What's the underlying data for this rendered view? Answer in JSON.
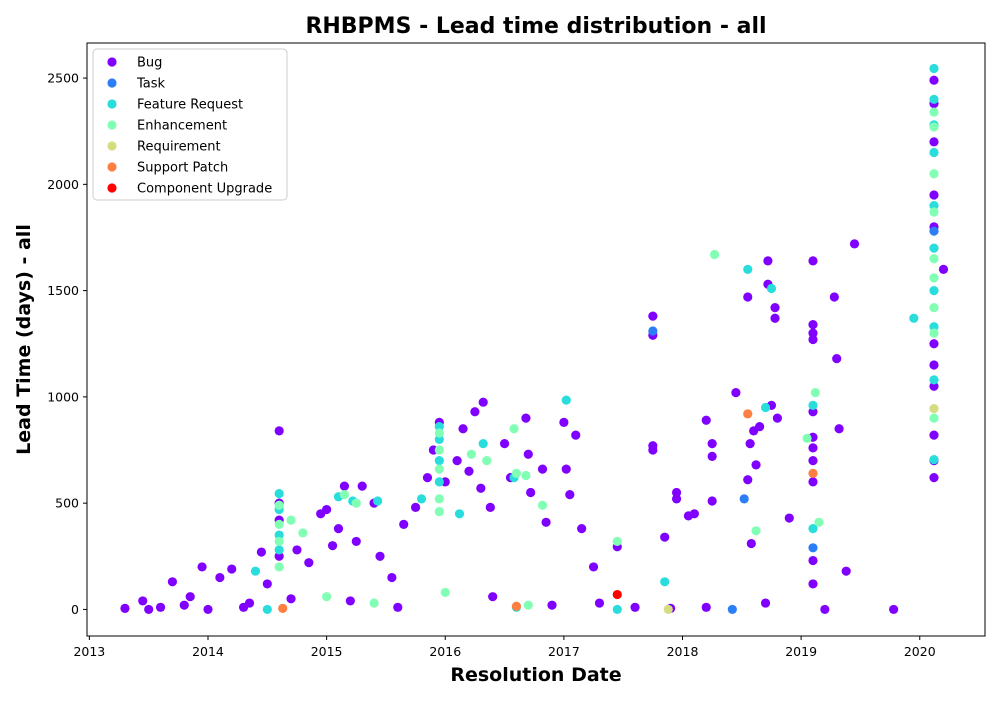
{
  "chart_data": {
    "type": "scatter",
    "title": "RHBPMS - Lead time distribution - all",
    "xlabel": "Resolution Date",
    "ylabel": "Lead Time (days) - all",
    "xlim": [
      2012.98,
      2020.55
    ],
    "ylim": [
      -125,
      2665
    ],
    "xticks": [
      2013,
      2014,
      2015,
      2016,
      2017,
      2018,
      2019,
      2020
    ],
    "xtick_labels": [
      "2013",
      "2014",
      "2015",
      "2016",
      "2017",
      "2018",
      "2019",
      "2020"
    ],
    "yticks": [
      0,
      500,
      1000,
      1500,
      2000,
      2500
    ],
    "ytick_labels": [
      "0",
      "500",
      "1000",
      "1500",
      "2000",
      "2500"
    ],
    "grid": false,
    "legend_position": "upper-left",
    "series": [
      {
        "name": "Bug",
        "color": "#8000ff",
        "points": [
          [
            2013.3,
            5
          ],
          [
            2013.45,
            40
          ],
          [
            2013.6,
            10
          ],
          [
            2013.7,
            130
          ],
          [
            2013.85,
            60
          ],
          [
            2013.95,
            200
          ],
          [
            2014.1,
            150
          ],
          [
            2014.2,
            190
          ],
          [
            2014.35,
            30
          ],
          [
            2014.45,
            270
          ],
          [
            2014.5,
            120
          ],
          [
            2014.6,
            840
          ],
          [
            2014.6,
            500
          ],
          [
            2014.6,
            420
          ],
          [
            2014.6,
            250
          ],
          [
            2014.75,
            280
          ],
          [
            2014.85,
            220
          ],
          [
            2014.95,
            450
          ],
          [
            2015.0,
            470
          ],
          [
            2015.05,
            300
          ],
          [
            2015.1,
            380
          ],
          [
            2015.15,
            580
          ],
          [
            2015.25,
            320
          ],
          [
            2015.3,
            580
          ],
          [
            2015.4,
            500
          ],
          [
            2015.45,
            250
          ],
          [
            2015.55,
            150
          ],
          [
            2015.65,
            400
          ],
          [
            2015.75,
            480
          ],
          [
            2015.85,
            620
          ],
          [
            2015.9,
            750
          ],
          [
            2015.95,
            880
          ],
          [
            2016.0,
            600
          ],
          [
            2016.1,
            700
          ],
          [
            2016.15,
            850
          ],
          [
            2016.2,
            650
          ],
          [
            2016.25,
            930
          ],
          [
            2016.3,
            570
          ],
          [
            2016.32,
            975
          ],
          [
            2016.38,
            480
          ],
          [
            2016.5,
            780
          ],
          [
            2016.55,
            620
          ],
          [
            2016.68,
            900
          ],
          [
            2016.7,
            730
          ],
          [
            2016.72,
            550
          ],
          [
            2016.82,
            660
          ],
          [
            2016.85,
            410
          ],
          [
            2017.0,
            880
          ],
          [
            2017.02,
            660
          ],
          [
            2017.05,
            540
          ],
          [
            2017.1,
            820
          ],
          [
            2017.15,
            380
          ],
          [
            2017.25,
            200
          ],
          [
            2017.45,
            295
          ],
          [
            2017.75,
            1380
          ],
          [
            2017.75,
            1290
          ],
          [
            2017.75,
            770
          ],
          [
            2017.75,
            750
          ],
          [
            2017.85,
            340
          ],
          [
            2017.95,
            550
          ],
          [
            2017.95,
            520
          ],
          [
            2018.05,
            440
          ],
          [
            2018.1,
            450
          ],
          [
            2018.2,
            890
          ],
          [
            2018.25,
            780
          ],
          [
            2018.25,
            720
          ],
          [
            2018.25,
            510
          ],
          [
            2018.45,
            1020
          ],
          [
            2018.55,
            1470
          ],
          [
            2018.6,
            840
          ],
          [
            2018.62,
            680
          ],
          [
            2018.65,
            860
          ],
          [
            2018.72,
            1640
          ],
          [
            2018.72,
            1530
          ],
          [
            2018.75,
            960
          ],
          [
            2018.78,
            1420
          ],
          [
            2018.78,
            1370
          ],
          [
            2018.8,
            900
          ],
          [
            2018.9,
            430
          ],
          [
            2018.55,
            610
          ],
          [
            2018.57,
            780
          ],
          [
            2018.58,
            310
          ],
          [
            2019.1,
            1640
          ],
          [
            2019.1,
            1340
          ],
          [
            2019.1,
            1300
          ],
          [
            2019.1,
            1270
          ],
          [
            2019.1,
            930
          ],
          [
            2019.1,
            810
          ],
          [
            2019.1,
            760
          ],
          [
            2019.1,
            700
          ],
          [
            2019.1,
            600
          ],
          [
            2019.1,
            230
          ],
          [
            2019.1,
            120
          ],
          [
            2019.28,
            1470
          ],
          [
            2019.3,
            1180
          ],
          [
            2019.32,
            850
          ],
          [
            2019.38,
            180
          ],
          [
            2019.45,
            1720
          ],
          [
            2019.78,
            0
          ],
          [
            2020.2,
            1600
          ],
          [
            2020.12,
            2490
          ],
          [
            2020.12,
            2380
          ],
          [
            2020.12,
            2200
          ],
          [
            2020.12,
            1950
          ],
          [
            2020.12,
            1800
          ],
          [
            2020.12,
            1250
          ],
          [
            2020.12,
            1150
          ],
          [
            2020.12,
            1050
          ],
          [
            2020.12,
            820
          ],
          [
            2020.12,
            700
          ],
          [
            2020.12,
            620
          ],
          [
            2013.5,
            0
          ],
          [
            2013.8,
            20
          ],
          [
            2014.0,
            0
          ],
          [
            2014.3,
            10
          ],
          [
            2014.7,
            50
          ],
          [
            2015.2,
            40
          ],
          [
            2015.6,
            10
          ],
          [
            2016.4,
            60
          ],
          [
            2016.9,
            20
          ],
          [
            2017.3,
            30
          ],
          [
            2017.6,
            10
          ],
          [
            2017.9,
            5
          ],
          [
            2018.2,
            10
          ],
          [
            2018.7,
            30
          ],
          [
            2019.2,
            0
          ]
        ]
      },
      {
        "name": "Task",
        "color": "#2c7ef7",
        "points": [
          [
            2017.75,
            1310
          ],
          [
            2018.42,
            0
          ],
          [
            2018.52,
            520
          ],
          [
            2019.1,
            290
          ],
          [
            2020.12,
            1780
          ]
        ]
      },
      {
        "name": "Feature Request",
        "color": "#2adddd",
        "points": [
          [
            2014.4,
            180
          ],
          [
            2014.6,
            545
          ],
          [
            2014.6,
            470
          ],
          [
            2014.6,
            350
          ],
          [
            2014.6,
            280
          ],
          [
            2015.1,
            530
          ],
          [
            2015.22,
            510
          ],
          [
            2015.43,
            510
          ],
          [
            2015.8,
            520
          ],
          [
            2015.95,
            860
          ],
          [
            2015.95,
            800
          ],
          [
            2015.95,
            700
          ],
          [
            2015.95,
            600
          ],
          [
            2016.12,
            450
          ],
          [
            2016.32,
            780
          ],
          [
            2016.58,
            620
          ],
          [
            2017.02,
            985
          ],
          [
            2017.85,
            130
          ],
          [
            2018.55,
            1600
          ],
          [
            2018.7,
            950
          ],
          [
            2018.75,
            1510
          ],
          [
            2019.1,
            960
          ],
          [
            2019.95,
            1370
          ],
          [
            2020.12,
            2545
          ],
          [
            2020.12,
            2400
          ],
          [
            2020.12,
            2280
          ],
          [
            2020.12,
            2150
          ],
          [
            2020.12,
            1900
          ],
          [
            2020.12,
            1700
          ],
          [
            2020.12,
            1500
          ],
          [
            2020.12,
            1330
          ],
          [
            2020.12,
            1080
          ],
          [
            2020.12,
            705
          ],
          [
            2019.1,
            380
          ],
          [
            2016.6,
            10
          ],
          [
            2014.5,
            0
          ],
          [
            2017.45,
            0
          ]
        ]
      },
      {
        "name": "Enhancement",
        "color": "#81ffb4",
        "points": [
          [
            2014.6,
            490
          ],
          [
            2014.6,
            400
          ],
          [
            2014.6,
            320
          ],
          [
            2014.6,
            200
          ],
          [
            2014.7,
            420
          ],
          [
            2014.8,
            360
          ],
          [
            2015.15,
            540
          ],
          [
            2015.25,
            500
          ],
          [
            2015.95,
            830
          ],
          [
            2015.95,
            750
          ],
          [
            2015.95,
            660
          ],
          [
            2015.95,
            520
          ],
          [
            2015.95,
            460
          ],
          [
            2016.22,
            730
          ],
          [
            2016.35,
            700
          ],
          [
            2016.58,
            850
          ],
          [
            2016.6,
            640
          ],
          [
            2016.68,
            630
          ],
          [
            2016.82,
            490
          ],
          [
            2017.45,
            320
          ],
          [
            2018.27,
            1670
          ],
          [
            2018.62,
            370
          ],
          [
            2019.05,
            805
          ],
          [
            2019.12,
            1020
          ],
          [
            2019.15,
            410
          ],
          [
            2020.12,
            2340
          ],
          [
            2020.12,
            2270
          ],
          [
            2020.12,
            2050
          ],
          [
            2020.12,
            1870
          ],
          [
            2020.12,
            1650
          ],
          [
            2020.12,
            1560
          ],
          [
            2020.12,
            1420
          ],
          [
            2020.12,
            1300
          ],
          [
            2020.12,
            900
          ],
          [
            2015.0,
            60
          ],
          [
            2015.4,
            30
          ],
          [
            2016.0,
            80
          ],
          [
            2016.7,
            20
          ]
        ]
      },
      {
        "name": "Requirement",
        "color": "#d4dd80",
        "points": [
          [
            2017.88,
            0
          ],
          [
            2020.12,
            945
          ]
        ]
      },
      {
        "name": "Support Patch",
        "color": "#ff7e41",
        "points": [
          [
            2014.63,
            5
          ],
          [
            2016.6,
            15
          ],
          [
            2018.55,
            920
          ],
          [
            2019.1,
            640
          ]
        ]
      },
      {
        "name": "Component Upgrade",
        "color": "#ff0000",
        "points": [
          [
            2017.45,
            70
          ]
        ]
      }
    ]
  }
}
